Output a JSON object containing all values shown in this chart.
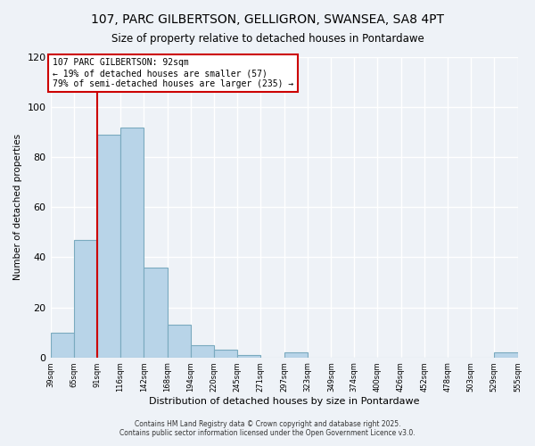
{
  "title": "107, PARC GILBERTSON, GELLIGRON, SWANSEA, SA8 4PT",
  "subtitle": "Size of property relative to detached houses in Pontardawe",
  "xlabel": "Distribution of detached houses by size in Pontardawe",
  "ylabel": "Number of detached properties",
  "bar_color": "#b8d4e8",
  "bar_edge_color": "#7aaabf",
  "vline_x": 91,
  "vline_color": "#cc0000",
  "annotation_title": "107 PARC GILBERTSON: 92sqm",
  "annotation_line1": "← 19% of detached houses are smaller (57)",
  "annotation_line2": "79% of semi-detached houses are larger (235) →",
  "annotation_box_color": "#ffffff",
  "annotation_box_edge": "#cc0000",
  "bin_edges": [
    39,
    65,
    91,
    116,
    142,
    168,
    194,
    220,
    245,
    271,
    297,
    323,
    349,
    374,
    400,
    426,
    452,
    478,
    503,
    529,
    555
  ],
  "bin_heights": [
    10,
    47,
    89,
    92,
    36,
    13,
    5,
    3,
    1,
    0,
    2,
    0,
    0,
    0,
    0,
    0,
    0,
    0,
    0,
    2
  ],
  "ylim": [
    0,
    120
  ],
  "yticks": [
    0,
    20,
    40,
    60,
    80,
    100,
    120
  ],
  "footer_line1": "Contains HM Land Registry data © Crown copyright and database right 2025.",
  "footer_line2": "Contains public sector information licensed under the Open Government Licence v3.0.",
  "background_color": "#eef2f7",
  "grid_color": "#ffffff"
}
